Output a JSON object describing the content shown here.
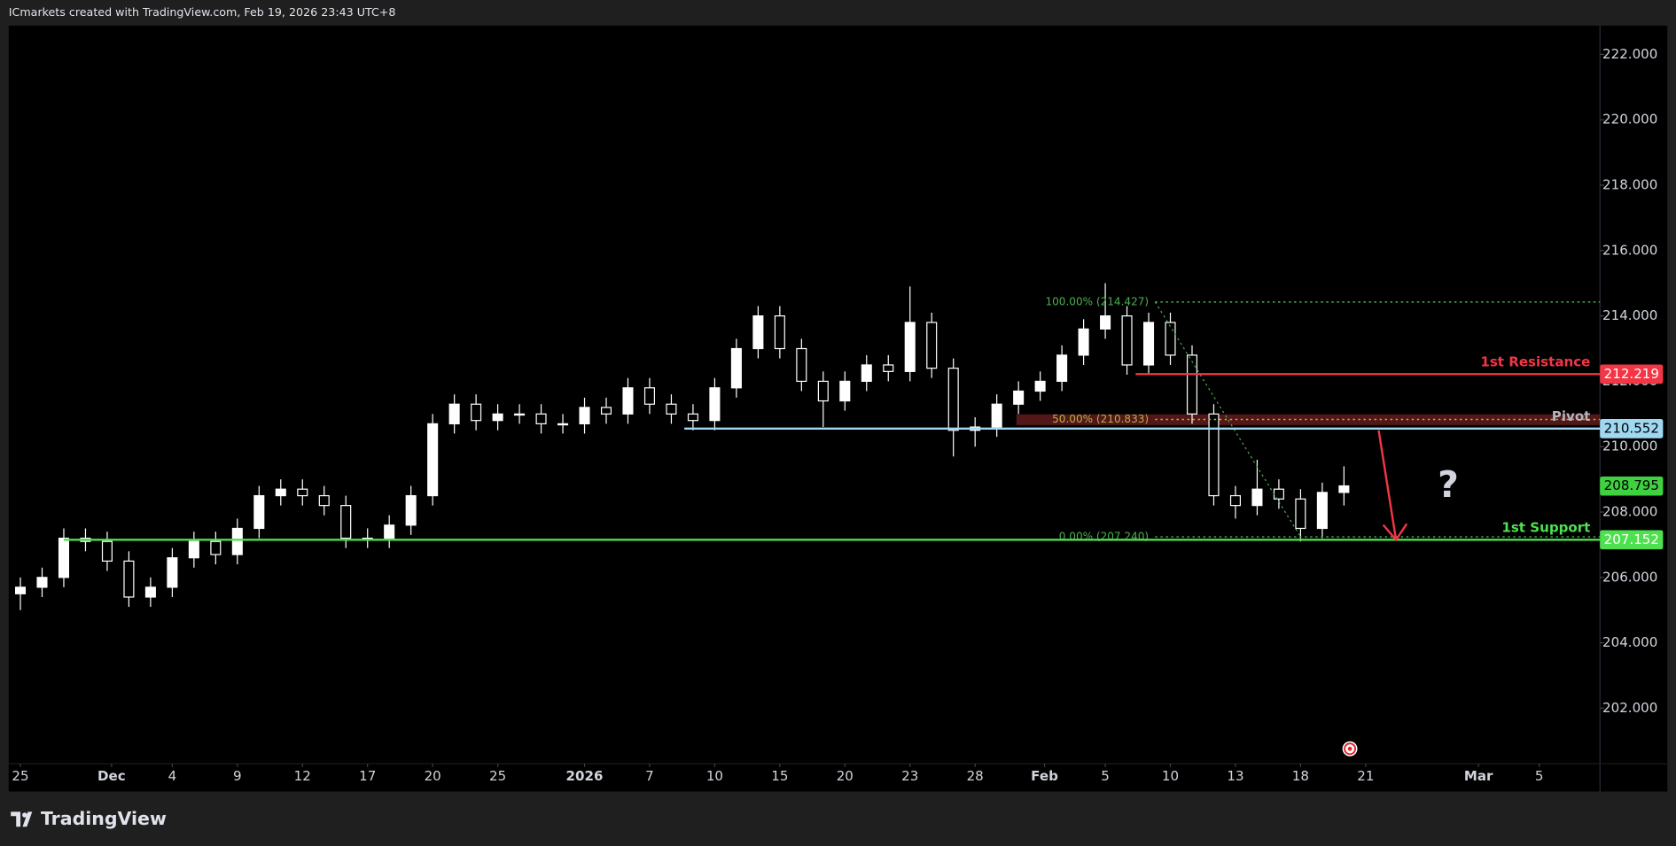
{
  "header": "ICmarkets created with TradingView.com, Feb 19, 2026 23:43 UTC+8",
  "footer": "TradingView",
  "chart_data": {
    "type": "candlestick",
    "up_color": "#ffffff",
    "down_color": "#000000",
    "wick_color": "#ffffff",
    "x": [
      0,
      1,
      2,
      3,
      4,
      5,
      6,
      7,
      8,
      9,
      10,
      11,
      12,
      13,
      14,
      15,
      16,
      17,
      18,
      19,
      20,
      21,
      22,
      23,
      24,
      25,
      26,
      27,
      28,
      29,
      30,
      31,
      32,
      33,
      34,
      35,
      36,
      37,
      38,
      39,
      40,
      41,
      42,
      43,
      44,
      45,
      46,
      47,
      48,
      49,
      50,
      51,
      52,
      53,
      54,
      55,
      56,
      57,
      58,
      59,
      60,
      61
    ],
    "open": [
      205.5,
      205.7,
      206.0,
      207.2,
      207.1,
      206.5,
      205.4,
      205.7,
      206.6,
      207.1,
      206.7,
      207.5,
      208.5,
      208.7,
      208.5,
      208.2,
      207.2,
      207.2,
      207.6,
      208.5,
      210.7,
      211.3,
      210.8,
      211.0,
      211.0,
      210.7,
      210.7,
      211.2,
      211.0,
      211.8,
      211.3,
      211.0,
      210.8,
      211.8,
      213.0,
      214.0,
      213.0,
      212.0,
      211.4,
      212.0,
      212.5,
      212.3,
      213.8,
      212.4,
      210.5,
      210.6,
      211.3,
      211.7,
      212.0,
      212.8,
      213.6,
      214.0,
      212.5,
      213.8,
      212.8,
      211.0,
      208.5,
      208.2,
      208.7,
      208.4,
      207.5,
      208.6
    ],
    "high": [
      206.0,
      206.3,
      207.5,
      207.5,
      207.4,
      206.8,
      206.0,
      206.9,
      207.4,
      207.4,
      207.8,
      208.8,
      209.0,
      209.0,
      208.8,
      208.5,
      207.5,
      207.9,
      208.8,
      211.0,
      211.6,
      211.6,
      211.3,
      211.3,
      211.3,
      211.0,
      211.5,
      211.5,
      212.1,
      212.1,
      211.6,
      211.3,
      212.1,
      213.3,
      214.3,
      214.3,
      213.3,
      212.3,
      212.3,
      212.8,
      212.8,
      214.9,
      214.1,
      212.7,
      210.9,
      211.6,
      212.0,
      212.3,
      213.1,
      213.9,
      215.0,
      214.3,
      214.1,
      214.1,
      213.1,
      211.3,
      208.8,
      209.6,
      209.0,
      208.7,
      208.9,
      209.4
    ],
    "low": [
      205.0,
      205.4,
      205.7,
      206.8,
      206.2,
      205.1,
      205.1,
      205.4,
      206.3,
      206.4,
      206.4,
      207.2,
      208.2,
      208.2,
      207.9,
      206.9,
      206.9,
      206.9,
      207.3,
      208.2,
      210.4,
      210.5,
      210.5,
      210.7,
      210.4,
      210.4,
      210.4,
      210.7,
      210.7,
      211.0,
      210.7,
      210.5,
      210.5,
      211.5,
      212.7,
      212.7,
      211.7,
      210.6,
      211.1,
      211.7,
      212.0,
      212.0,
      212.1,
      209.7,
      210.0,
      210.3,
      211.0,
      211.4,
      211.7,
      212.5,
      213.3,
      212.2,
      212.2,
      212.5,
      210.7,
      208.2,
      207.8,
      207.9,
      208.1,
      207.1,
      207.2,
      208.2
    ],
    "close": [
      205.7,
      206.0,
      207.2,
      207.1,
      206.5,
      205.4,
      205.7,
      206.6,
      207.1,
      206.7,
      207.5,
      208.5,
      208.7,
      208.5,
      208.2,
      207.2,
      207.2,
      207.6,
      208.5,
      210.7,
      211.3,
      210.8,
      211.0,
      211.0,
      210.7,
      210.7,
      211.2,
      211.0,
      211.8,
      211.3,
      211.0,
      210.8,
      211.8,
      213.0,
      214.0,
      213.0,
      212.0,
      211.4,
      212.0,
      212.5,
      212.3,
      213.8,
      212.4,
      210.5,
      210.6,
      211.3,
      211.7,
      212.0,
      212.8,
      213.6,
      214.0,
      212.5,
      213.8,
      212.8,
      211.0,
      208.5,
      208.2,
      208.7,
      208.4,
      207.5,
      208.6,
      208.8
    ],
    "xlim": [
      -0.54,
      72.8
    ],
    "xticks": [
      {
        "value": 0,
        "label": "25"
      },
      {
        "value": 4.2,
        "label": "Dec"
      },
      {
        "value": 7,
        "label": "4"
      },
      {
        "value": 10,
        "label": "9"
      },
      {
        "value": 13,
        "label": "12"
      },
      {
        "value": 16,
        "label": "17"
      },
      {
        "value": 19,
        "label": "20"
      },
      {
        "value": 22,
        "label": "25"
      },
      {
        "value": 26,
        "label": "2026"
      },
      {
        "value": 29,
        "label": "7"
      },
      {
        "value": 32,
        "label": "10"
      },
      {
        "value": 35,
        "label": "15"
      },
      {
        "value": 38,
        "label": "20"
      },
      {
        "value": 41,
        "label": "23"
      },
      {
        "value": 44,
        "label": "28"
      },
      {
        "value": 47.2,
        "label": "Feb"
      },
      {
        "value": 50,
        "label": "5"
      },
      {
        "value": 53,
        "label": "10"
      },
      {
        "value": 56,
        "label": "13"
      },
      {
        "value": 59,
        "label": "18"
      },
      {
        "value": 62,
        "label": "21"
      },
      {
        "value": 67.2,
        "label": "Mar"
      },
      {
        "value": 70,
        "label": "5"
      }
    ],
    "ylim": [
      200.3,
      222.88
    ],
    "yticks": [
      {
        "value": 202,
        "label": "202.000"
      },
      {
        "value": 204,
        "label": "204.000"
      },
      {
        "value": 206,
        "label": "206.000"
      },
      {
        "value": 208,
        "label": "208.000"
      },
      {
        "value": 210,
        "label": "210.000"
      },
      {
        "value": 212,
        "label": "212.000"
      },
      {
        "value": 214,
        "label": "214.000"
      },
      {
        "value": 216,
        "label": "216.000"
      },
      {
        "value": 218,
        "label": "218.000"
      },
      {
        "value": 220,
        "label": "220.000"
      },
      {
        "value": 222,
        "label": "222.000"
      }
    ],
    "levels": [
      {
        "label": "1st Resistance",
        "value": 212.219,
        "color": "#f23645",
        "x_start": 51.4
      },
      {
        "label": "Pivot",
        "value": 210.552,
        "color": "#9fd8f0",
        "text_color": "#b2b5be",
        "x_start": 30.6
      },
      {
        "label": "1st Support",
        "value": 207.152,
        "color": "#4ee04e",
        "x_start": 2.0
      }
    ],
    "last_price": 208.795,
    "last_price_color": "#3fd13f",
    "fib": [
      {
        "label": "100.00% (214.427)",
        "value": 214.427,
        "color": "#4caf50"
      },
      {
        "label": "50.00% (210.833)",
        "value": 210.833,
        "color": "#b5b04a"
      },
      {
        "label": "0.00% (207.240)",
        "value": 207.24,
        "color": "#4caf50"
      }
    ],
    "fib_x": [
      52.3,
      59
    ],
    "zone": [
      210.66,
      210.99
    ],
    "zone_color": "#5c1a1a",
    "arrow": {
      "x": [
        62.6,
        63.4
      ],
      "y": [
        210.5,
        207.15
      ],
      "color": "#f23645"
    },
    "annotation": "?"
  }
}
